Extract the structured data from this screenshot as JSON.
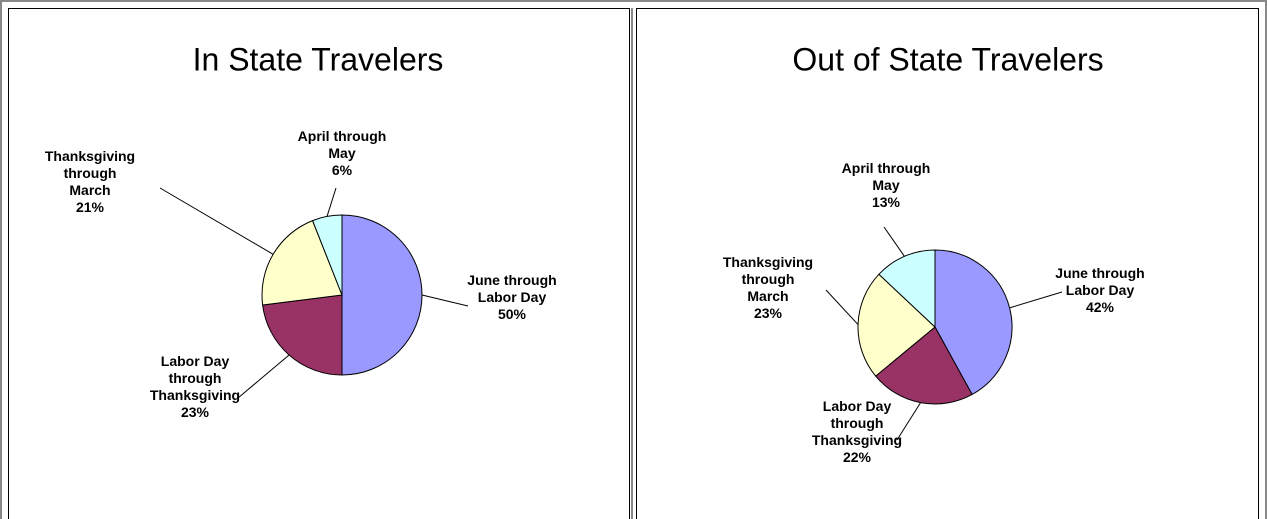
{
  "chart_data": [
    {
      "type": "pie",
      "title": "In State Travelers",
      "categories": [
        "June through Labor Day",
        "Labor Day through Thanksgiving",
        "Thanksgiving through March",
        "April through May"
      ],
      "values": [
        50,
        23,
        21,
        6
      ],
      "value_labels": [
        "50%",
        "23%",
        "21%",
        "6%"
      ],
      "colors": [
        "#9999ff",
        "#993366",
        "#ffffcc",
        "#ccffff"
      ]
    },
    {
      "type": "pie",
      "title": "Out of State Travelers",
      "categories": [
        "June through Labor Day",
        "Labor Day through Thanksgiving",
        "Thanksgiving through March",
        "April through May"
      ],
      "values": [
        42,
        22,
        23,
        13
      ],
      "value_labels": [
        "42%",
        "22%",
        "23%",
        "13%"
      ],
      "colors": [
        "#9999ff",
        "#993366",
        "#ffffcc",
        "#ccffff"
      ]
    }
  ]
}
